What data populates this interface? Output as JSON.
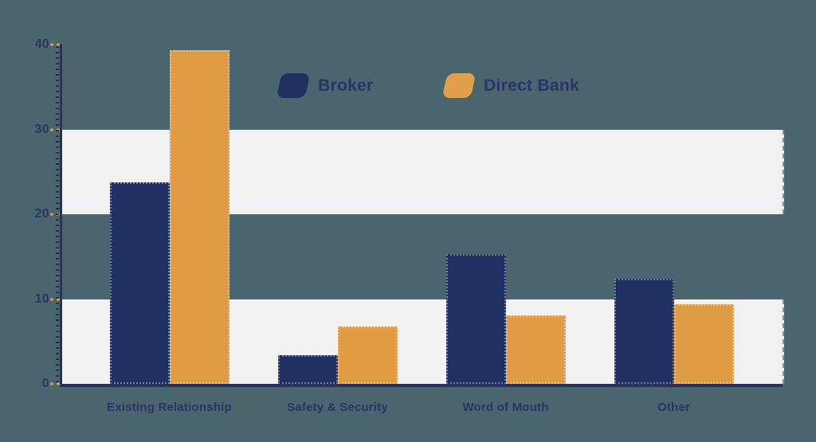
{
  "chart_data": {
    "type": "bar",
    "title": "",
    "categories": [
      "Existing Relationship",
      "Safety & Security",
      "Word of Mouth",
      "Other"
    ],
    "series": [
      {
        "name": "Broker",
        "color": "#213063",
        "values": [
          23.8,
          3.4,
          15.3,
          12.4
        ]
      },
      {
        "name": "Direct Bank",
        "color": "#df9c45",
        "values": [
          39.3,
          6.8,
          8.1,
          9.4
        ]
      }
    ],
    "ylim": [
      0,
      40
    ],
    "yticks": [
      0,
      10,
      20,
      30,
      40
    ],
    "background_bands": [
      [
        20,
        30
      ],
      [
        0,
        10
      ]
    ],
    "grid": "off",
    "legend_position": "top-center"
  },
  "palette": {
    "background": "#4a656e",
    "band": "#f2f2f3",
    "axis": "#27315c",
    "text": "#2a3465",
    "major_tick": "#d89a4d"
  }
}
